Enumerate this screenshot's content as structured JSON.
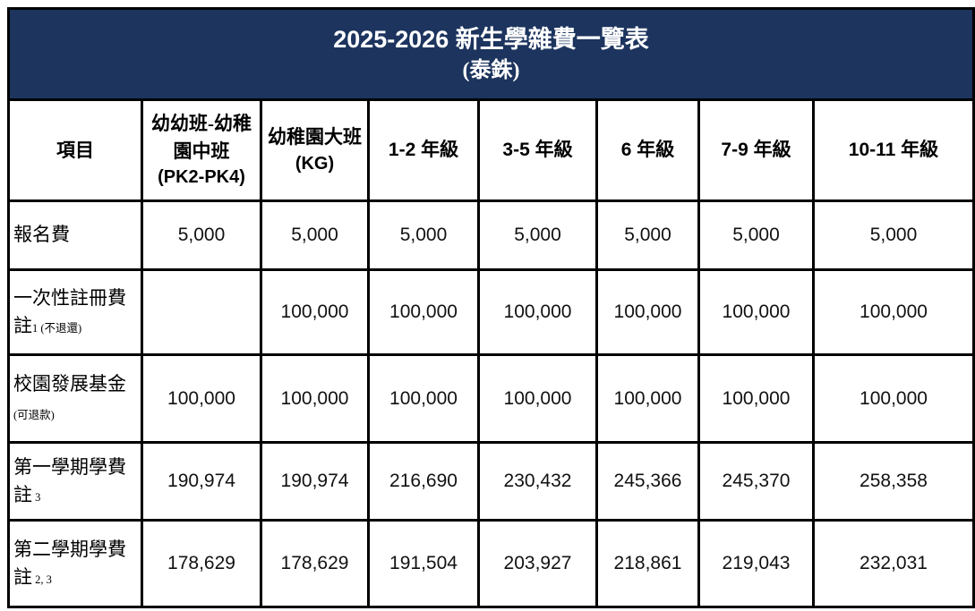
{
  "title": {
    "line1": "2025-2026 新生學雜費一覽表",
    "line2": "(泰銖)"
  },
  "colors": {
    "title_bg": "#1C345E",
    "title_text": "#FFFFFF",
    "border": "#000000",
    "cell_bg": "#FFFFFF",
    "cell_text": "#000000"
  },
  "columns": [
    {
      "main": "項目",
      "sub": ""
    },
    {
      "main": "幼幼班-幼稚園中班",
      "sub": "(PK2-PK4)"
    },
    {
      "main": "幼稚園大班",
      "sub": "(KG)"
    },
    {
      "main": "1-2 年級",
      "sub": ""
    },
    {
      "main": "3-5 年級",
      "sub": ""
    },
    {
      "main": "6 年級",
      "sub": ""
    },
    {
      "main": "7-9 年級",
      "sub": ""
    },
    {
      "main": "10-11 年級",
      "sub": ""
    }
  ],
  "rows": [
    {
      "label": "報名費",
      "note_prefix": "",
      "note_small": "",
      "values": [
        "5,000",
        "5,000",
        "5,000",
        "5,000",
        "5,000",
        "5,000",
        "5,000"
      ]
    },
    {
      "label": "一次性註冊費",
      "note_prefix": "註",
      "note_small": "1 (不退還)",
      "values": [
        "",
        "100,000",
        "100,000",
        "100,000",
        "100,000",
        "100,000",
        "100,000"
      ]
    },
    {
      "label": "校園發展基金",
      "note_prefix": "",
      "note_small": "(可退款)",
      "values": [
        "100,000",
        "100,000",
        "100,000",
        "100,000",
        "100,000",
        "100,000",
        "100,000"
      ]
    },
    {
      "label": "第一學期學費",
      "note_prefix": "註",
      "note_small": " 3",
      "values": [
        "190,974",
        "190,974",
        "216,690",
        "230,432",
        "245,366",
        "245,370",
        "258,358"
      ]
    },
    {
      "label": "第二學期學費",
      "note_prefix": "註",
      "note_small": " 2, 3",
      "values": [
        "178,629",
        "178,629",
        "191,504",
        "203,927",
        "218,861",
        "219,043",
        "232,031"
      ]
    }
  ]
}
